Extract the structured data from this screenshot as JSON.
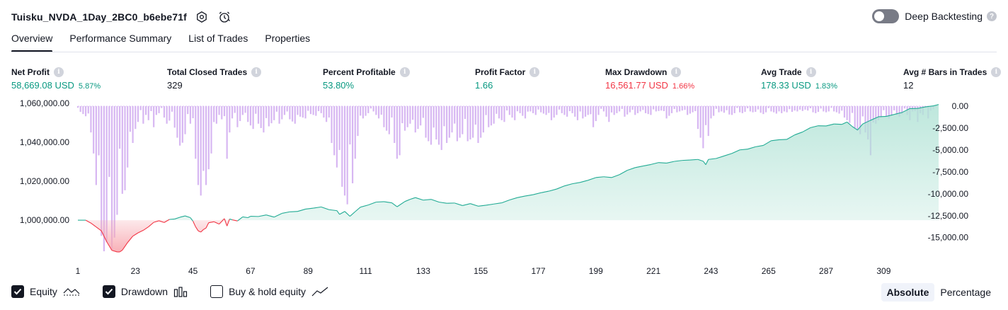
{
  "header": {
    "strategy_name": "Tuisku_NVDA_1Day_2BC0_b6ebe71f",
    "deep_backtesting_label": "Deep Backtesting",
    "deep_backtesting_enabled": false,
    "help_glyph": "?"
  },
  "tabs": [
    {
      "label": "Overview",
      "active": true
    },
    {
      "label": "Performance Summary",
      "active": false
    },
    {
      "label": "List of Trades",
      "active": false
    },
    {
      "label": "Properties",
      "active": false
    }
  ],
  "metrics": [
    {
      "label": "Net Profit",
      "value": "58,669.08 USD",
      "pct": "5.87%",
      "color": "green"
    },
    {
      "label": "Total Closed Trades",
      "value": "329",
      "pct": "",
      "color": "dark"
    },
    {
      "label": "Percent Profitable",
      "value": "53.80%",
      "pct": "",
      "color": "green"
    },
    {
      "label": "Profit Factor",
      "value": "1.66",
      "pct": "",
      "color": "green"
    },
    {
      "label": "Max Drawdown",
      "value": "16,561.77 USD",
      "pct": "1.66%",
      "color": "red"
    },
    {
      "label": "Avg Trade",
      "value": "178.33 USD",
      "pct": "1.83%",
      "color": "green"
    },
    {
      "label": "Avg # Bars in Trades",
      "value": "12",
      "pct": "",
      "color": "dark"
    }
  ],
  "info_glyph": "i",
  "colors": {
    "equity_positive_line": "#22ab94",
    "equity_negative_line": "#f23645",
    "equity_positive_fill": "#b2e3d6",
    "equity_negative_fill": "#f7a8b0",
    "drawdown_bar": "#d7b7f2",
    "green_text": "#089981",
    "red_text": "#f23645"
  },
  "chart_data": {
    "type": "area",
    "x_ticks": [
      "1",
      "23",
      "45",
      "67",
      "89",
      "111",
      "133",
      "155",
      "177",
      "199",
      "221",
      "243",
      "265",
      "287",
      "309"
    ],
    "x_range": [
      1,
      330
    ],
    "equity_axis": {
      "ticks": [
        "1,060,000.00",
        "1,040,000.00",
        "1,020,000.00",
        "1,000,000.00"
      ],
      "tick_values": [
        1060000,
        1040000,
        1020000,
        1000000
      ],
      "range": [
        981500,
        1060000
      ],
      "baseline": 1000000
    },
    "drawdown_axis": {
      "ticks": [
        "0.00",
        "-2,500.00",
        "-5,000.00",
        "-7,500.00",
        "-10,000.00",
        "-12,500.00",
        "-15,000.00"
      ],
      "tick_values": [
        0,
        -2500,
        -5000,
        -7500,
        -10000,
        -12500,
        -15000
      ],
      "range": [
        -16800,
        0
      ]
    },
    "equity_points": [
      [
        1,
        1000000
      ],
      [
        4,
        1000000
      ],
      [
        6,
        998500
      ],
      [
        8,
        996500
      ],
      [
        10,
        994500
      ],
      [
        12,
        989000
      ],
      [
        14,
        984500
      ],
      [
        16,
        983700
      ],
      [
        17,
        983700
      ],
      [
        18,
        984600
      ],
      [
        20,
        988500
      ],
      [
        22,
        991800
      ],
      [
        24,
        993500
      ],
      [
        26,
        994800
      ],
      [
        28,
        996600
      ],
      [
        30,
        998900
      ],
      [
        32,
        999700
      ],
      [
        34,
        998800
      ],
      [
        36,
        1000400
      ],
      [
        38,
        1000600
      ],
      [
        40,
        1001500
      ],
      [
        42,
        1002200
      ],
      [
        44,
        1001300
      ],
      [
        45,
        999500
      ],
      [
        46,
        996600
      ],
      [
        47,
        994500
      ],
      [
        48,
        993900
      ],
      [
        49,
        995200
      ],
      [
        50,
        996000
      ],
      [
        51,
        998700
      ],
      [
        53,
        999200
      ],
      [
        55,
        998000
      ],
      [
        57,
        1000800
      ],
      [
        58,
        997000
      ],
      [
        59,
        1000600
      ],
      [
        60,
        1000200
      ],
      [
        62,
        999600
      ],
      [
        64,
        1001700
      ],
      [
        66,
        1001300
      ],
      [
        67,
        1002000
      ],
      [
        70,
        1001900
      ],
      [
        73,
        1002700
      ],
      [
        76,
        1001600
      ],
      [
        79,
        1003500
      ],
      [
        82,
        1004300
      ],
      [
        85,
        1004500
      ],
      [
        88,
        1005700
      ],
      [
        91,
        1006200
      ],
      [
        94,
        1006800
      ],
      [
        97,
        1005400
      ],
      [
        100,
        1004900
      ],
      [
        101,
        1003000
      ],
      [
        103,
        1004500
      ],
      [
        105,
        1002000
      ],
      [
        107,
        1004400
      ],
      [
        109,
        1006700
      ],
      [
        112,
        1007800
      ],
      [
        115,
        1009300
      ],
      [
        118,
        1009500
      ],
      [
        121,
        1008900
      ],
      [
        123,
        1006900
      ],
      [
        126,
        1009600
      ],
      [
        128,
        1010700
      ],
      [
        130,
        1011600
      ],
      [
        133,
        1010300
      ],
      [
        136,
        1010700
      ],
      [
        139,
        1009300
      ],
      [
        142,
        1008700
      ],
      [
        145,
        1008800
      ],
      [
        148,
        1007500
      ],
      [
        151,
        1008500
      ],
      [
        154,
        1007200
      ],
      [
        157,
        1007700
      ],
      [
        160,
        1008300
      ],
      [
        163,
        1008900
      ],
      [
        166,
        1010400
      ],
      [
        169,
        1011600
      ],
      [
        172,
        1012400
      ],
      [
        175,
        1013100
      ],
      [
        178,
        1014100
      ],
      [
        181,
        1014900
      ],
      [
        184,
        1016000
      ],
      [
        187,
        1017600
      ],
      [
        190,
        1018700
      ],
      [
        193,
        1019400
      ],
      [
        196,
        1020500
      ],
      [
        199,
        1021900
      ],
      [
        202,
        1022300
      ],
      [
        205,
        1021900
      ],
      [
        208,
        1023400
      ],
      [
        211,
        1025600
      ],
      [
        214,
        1027000
      ],
      [
        217,
        1027800
      ],
      [
        220,
        1028600
      ],
      [
        223,
        1029600
      ],
      [
        226,
        1029300
      ],
      [
        229,
        1030200
      ],
      [
        232,
        1030700
      ],
      [
        235,
        1030900
      ],
      [
        238,
        1031200
      ],
      [
        240,
        1030300
      ],
      [
        241,
        1028500
      ],
      [
        242,
        1031200
      ],
      [
        245,
        1031700
      ],
      [
        248,
        1033000
      ],
      [
        251,
        1034300
      ],
      [
        254,
        1036100
      ],
      [
        257,
        1036500
      ],
      [
        260,
        1037700
      ],
      [
        263,
        1038400
      ],
      [
        266,
        1040800
      ],
      [
        269,
        1041300
      ],
      [
        272,
        1041500
      ],
      [
        275,
        1043800
      ],
      [
        278,
        1045300
      ],
      [
        281,
        1047500
      ],
      [
        284,
        1048500
      ],
      [
        287,
        1048400
      ],
      [
        290,
        1049400
      ],
      [
        293,
        1049200
      ],
      [
        295,
        1050400
      ],
      [
        297,
        1048100
      ],
      [
        299,
        1046300
      ],
      [
        301,
        1049400
      ],
      [
        304,
        1051300
      ],
      [
        307,
        1053100
      ],
      [
        310,
        1053300
      ],
      [
        313,
        1054300
      ],
      [
        316,
        1055300
      ],
      [
        319,
        1057300
      ],
      [
        322,
        1057400
      ],
      [
        325,
        1058200
      ],
      [
        328,
        1058700
      ],
      [
        330,
        1059400
      ]
    ],
    "drawdown_profile": [
      [
        1,
        -400
      ],
      [
        5,
        -1400
      ],
      [
        6,
        -3000
      ],
      [
        7,
        -5400
      ],
      [
        8,
        -9000
      ],
      [
        9,
        -13000
      ],
      [
        10,
        -14800
      ],
      [
        11,
        -16561
      ],
      [
        12,
        -15500
      ],
      [
        13,
        -14200
      ],
      [
        14,
        -16400
      ],
      [
        15,
        -15000
      ],
      [
        16,
        -12400
      ],
      [
        17,
        -12000
      ],
      [
        18,
        -10000
      ],
      [
        19,
        -9600
      ],
      [
        20,
        -7000
      ],
      [
        21,
        -5400
      ],
      [
        22,
        -4200
      ],
      [
        23,
        -2600
      ],
      [
        24,
        -1800
      ],
      [
        25,
        -1200
      ],
      [
        26,
        -2000
      ],
      [
        27,
        -1000
      ],
      [
        28,
        -1600
      ],
      [
        29,
        -1100
      ],
      [
        30,
        -2400
      ],
      [
        31,
        -1000
      ],
      [
        33,
        -600
      ],
      [
        35,
        -2000
      ],
      [
        37,
        -1300
      ],
      [
        39,
        -3600
      ],
      [
        40,
        -4500
      ],
      [
        41,
        -6700
      ],
      [
        42,
        -3200
      ],
      [
        43,
        -900
      ],
      [
        44,
        -2000
      ],
      [
        45,
        -3000
      ],
      [
        46,
        -6000
      ],
      [
        47,
        -9000
      ],
      [
        48,
        -10200
      ],
      [
        49,
        -12400
      ],
      [
        50,
        -9000
      ],
      [
        51,
        -7200
      ],
      [
        52,
        -5400
      ],
      [
        53,
        -4200
      ],
      [
        54,
        -2000
      ],
      [
        55,
        -1000
      ],
      [
        57,
        -2000
      ],
      [
        58,
        -6000
      ],
      [
        59,
        -3000
      ],
      [
        60,
        -1400
      ],
      [
        62,
        -2400
      ],
      [
        64,
        -1000
      ],
      [
        66,
        -1800
      ],
      [
        68,
        -2600
      ],
      [
        70,
        -2000
      ],
      [
        72,
        -3000
      ],
      [
        74,
        -2300
      ],
      [
        76,
        -1600
      ],
      [
        78,
        -2000
      ],
      [
        80,
        -1000
      ],
      [
        82,
        -1500
      ],
      [
        84,
        -2000
      ],
      [
        86,
        -1200
      ],
      [
        88,
        -1400
      ],
      [
        90,
        -900
      ],
      [
        92,
        -1100
      ],
      [
        94,
        -800
      ],
      [
        96,
        -1800
      ],
      [
        97,
        -3000
      ],
      [
        98,
        -4200
      ],
      [
        99,
        -5600
      ],
      [
        100,
        -7000
      ],
      [
        101,
        -8800
      ],
      [
        102,
        -9200
      ],
      [
        103,
        -10200
      ],
      [
        104,
        -11200
      ],
      [
        105,
        -10800
      ],
      [
        106,
        -8800
      ],
      [
        107,
        -6000
      ],
      [
        108,
        -3400
      ],
      [
        109,
        -2000
      ],
      [
        110,
        -1400
      ],
      [
        112,
        -800
      ],
      [
        114,
        -600
      ],
      [
        116,
        -1400
      ],
      [
        118,
        -2400
      ],
      [
        120,
        -3200
      ],
      [
        122,
        -4200
      ],
      [
        123,
        -6000
      ],
      [
        124,
        -5600
      ],
      [
        125,
        -4000
      ],
      [
        126,
        -2800
      ],
      [
        128,
        -2000
      ],
      [
        130,
        -3000
      ],
      [
        132,
        -2200
      ],
      [
        134,
        -3600
      ],
      [
        136,
        -4400
      ],
      [
        138,
        -3800
      ],
      [
        140,
        -5000
      ],
      [
        141,
        -5300
      ],
      [
        142,
        -4200
      ],
      [
        144,
        -3000
      ],
      [
        146,
        -4000
      ],
      [
        148,
        -3200
      ],
      [
        150,
        -4000
      ],
      [
        152,
        -3600
      ],
      [
        154,
        -4200
      ],
      [
        156,
        -3000
      ],
      [
        158,
        -2400
      ],
      [
        160,
        -2000
      ],
      [
        162,
        -1400
      ],
      [
        164,
        -1800
      ],
      [
        166,
        -1000
      ],
      [
        168,
        -1600
      ],
      [
        170,
        -800
      ],
      [
        172,
        -1400
      ],
      [
        174,
        -600
      ],
      [
        176,
        -1000
      ],
      [
        178,
        -700
      ],
      [
        180,
        -1000
      ],
      [
        182,
        -1600
      ],
      [
        184,
        -1000
      ],
      [
        186,
        -800
      ],
      [
        188,
        -1200
      ],
      [
        190,
        -800
      ],
      [
        192,
        -1600
      ],
      [
        194,
        -1400
      ],
      [
        196,
        -1000
      ],
      [
        198,
        -2400
      ],
      [
        200,
        -1000
      ],
      [
        202,
        -600
      ],
      [
        204,
        -1800
      ],
      [
        206,
        -1000
      ],
      [
        208,
        -600
      ],
      [
        210,
        -1200
      ],
      [
        212,
        -700
      ],
      [
        214,
        -1000
      ],
      [
        216,
        -600
      ],
      [
        218,
        -800
      ],
      [
        220,
        -1000
      ],
      [
        222,
        -600
      ],
      [
        224,
        -500
      ],
      [
        226,
        -1400
      ],
      [
        228,
        -800
      ],
      [
        230,
        -700
      ],
      [
        232,
        -500
      ],
      [
        234,
        -1000
      ],
      [
        236,
        -700
      ],
      [
        237,
        -1400
      ],
      [
        238,
        -2600
      ],
      [
        239,
        -3600
      ],
      [
        240,
        -4800
      ],
      [
        241,
        -4000
      ],
      [
        242,
        -3400
      ],
      [
        243,
        -1400
      ],
      [
        245,
        -800
      ],
      [
        247,
        -600
      ],
      [
        249,
        -900
      ],
      [
        251,
        -1000
      ],
      [
        253,
        -600
      ],
      [
        255,
        -800
      ],
      [
        257,
        -500
      ],
      [
        259,
        -700
      ],
      [
        261,
        -600
      ],
      [
        263,
        -900
      ],
      [
        265,
        -500
      ],
      [
        267,
        -700
      ],
      [
        269,
        -1000
      ],
      [
        271,
        -600
      ],
      [
        273,
        -800
      ],
      [
        275,
        -500
      ],
      [
        277,
        -700
      ],
      [
        279,
        -400
      ],
      [
        281,
        -600
      ],
      [
        283,
        -800
      ],
      [
        285,
        -500
      ],
      [
        287,
        -700
      ],
      [
        289,
        -500
      ],
      [
        291,
        -700
      ],
      [
        293,
        -1000
      ],
      [
        295,
        -1600
      ],
      [
        297,
        -2200
      ],
      [
        299,
        -2800
      ],
      [
        300,
        -3200
      ],
      [
        301,
        -2400
      ],
      [
        302,
        -3000
      ],
      [
        303,
        -3800
      ],
      [
        304,
        -5600
      ],
      [
        305,
        -3000
      ],
      [
        306,
        -2000
      ],
      [
        307,
        -1600
      ],
      [
        309,
        -1000
      ],
      [
        311,
        -1400
      ],
      [
        313,
        -800
      ],
      [
        315,
        -1200
      ],
      [
        317,
        -600
      ],
      [
        318,
        -1000
      ],
      [
        319,
        -1600
      ],
      [
        320,
        -600
      ],
      [
        321,
        -1000
      ],
      [
        322,
        -1800
      ],
      [
        323,
        -800
      ],
      [
        324,
        -1000
      ],
      [
        325,
        -500
      ],
      [
        326,
        -1400
      ],
      [
        327,
        -500
      ],
      [
        329,
        -200
      ],
      [
        330,
        0
      ]
    ]
  },
  "legend": {
    "items": [
      {
        "label": "Equity",
        "checked": true,
        "icon": "equity-line-icon"
      },
      {
        "label": "Drawdown",
        "checked": true,
        "icon": "drawdown-bars-icon"
      },
      {
        "label": "Buy & hold equity",
        "checked": false,
        "icon": "buy-hold-line-icon"
      }
    ]
  },
  "modes": [
    {
      "label": "Absolute",
      "active": true
    },
    {
      "label": "Percentage",
      "active": false
    }
  ]
}
